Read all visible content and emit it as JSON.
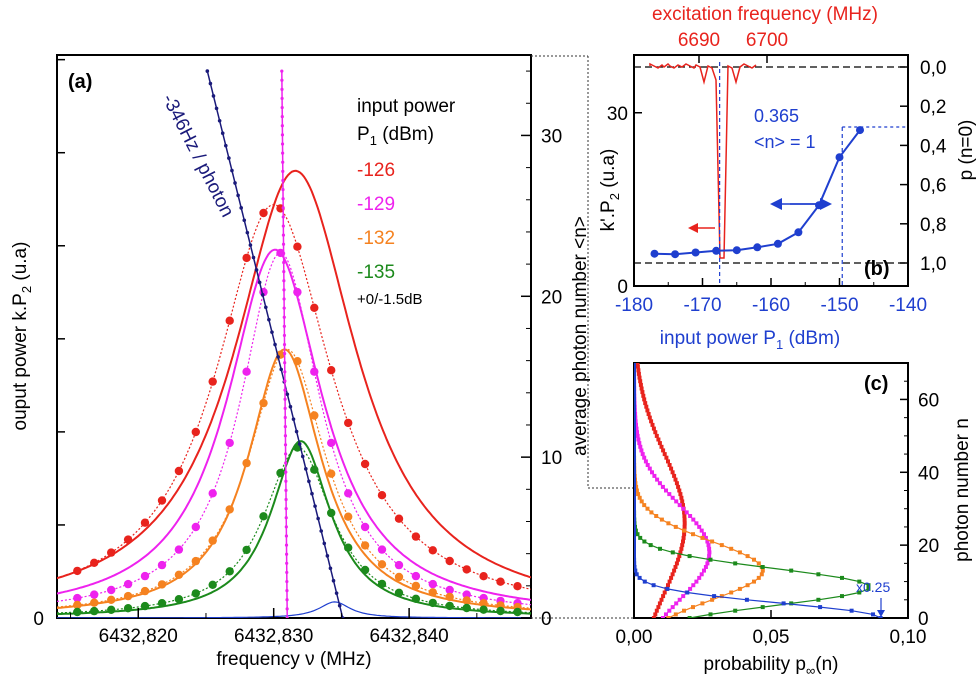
{
  "chart_data": [
    {
      "panel": "(a)",
      "type": "line",
      "xlabel": "frequency ν (MHz)",
      "ylabel": "ouput power k.P",
      "ylabel_sub": "2",
      "ylabel_unit": " (u.a)",
      "y2label": "average photon number <n>",
      "xlim": [
        6432.814,
        6432.849
      ],
      "ylim": [
        0,
        35
      ],
      "xticks": [
        "6432,820",
        "6432,830",
        "6432,840"
      ],
      "xtick_values": [
        6432.82,
        6432.83,
        6432.84
      ],
      "y2ticks": [
        "0",
        "10",
        "20",
        "30"
      ],
      "y2tick_values": [
        0,
        10,
        20,
        30
      ],
      "left_zero": "0",
      "legend_title_1": "input power",
      "legend_title_2": "P",
      "legend_title_sub": "1",
      "legend_title_unit": " (dBm)",
      "legend_note": "+0/-1.5dB",
      "annotation": "-346Hz / photon",
      "series": [
        {
          "name": "-126",
          "color": "#e8231d",
          "center": 6432.8316,
          "peak": 27.8,
          "width": 0.0055,
          "points_peak": 25.7,
          "points_width": 0.0052,
          "points_center": 6432.83
        },
        {
          "name": "-129",
          "color": "#ee22ee",
          "center": 6432.8301,
          "peak": 22.9,
          "width": 0.0043,
          "points_peak": 22.7,
          "points_width": 0.0036,
          "points_center": 6432.8305
        },
        {
          "name": "-132",
          "color": "#f58220",
          "center": 6432.8308,
          "peak": 16.7,
          "width": 0.0033,
          "points_peak": 16.7,
          "points_width": 0.0035,
          "points_center": 6432.831
        },
        {
          "name": "-135",
          "color": "#1c8a1c",
          "center": 6432.832,
          "peak": 11.0,
          "width": 0.0027,
          "points_peak": 10.6,
          "points_width": 0.0031,
          "points_center": 6432.8318
        }
      ],
      "linear_fit": {
        "color": "#1a1a7a",
        "x": [
          6432.8251,
          6432.8351
        ],
        "y": [
          34.0,
          0.0
        ]
      },
      "vertical_fit": {
        "color": "#ee22ee",
        "x": [
          6432.8306,
          6432.831
        ],
        "y": [
          34.0,
          0.0
        ]
      },
      "small_peak": {
        "color": "#1f3fcf",
        "center": 6432.8345,
        "peak": 1.0,
        "width": 0.0014
      }
    },
    {
      "panel": "(b)",
      "type": "line",
      "xlabel": "input power P",
      "xlabel_sub": "1",
      "xlabel_unit": " (dBm)",
      "ylabel": "k'.P",
      "ylabel_sub": "2",
      "ylabel_unit": " (u.a)",
      "y2label": "p (n=0)",
      "top_label": "excitation frequency (MHz)",
      "top_ticks": [
        "6690",
        "6700"
      ],
      "xlim": [
        -180,
        -140
      ],
      "xticks": [
        "-180",
        "-170",
        "-160",
        "-150",
        "-140"
      ],
      "xtick_values": [
        -180,
        -170,
        -160,
        -150,
        -140
      ],
      "ylim": [
        0,
        40
      ],
      "yticks": [
        "0",
        "30"
      ],
      "ytick_values": [
        0,
        30
      ],
      "y2ticks": [
        "0,0",
        "0,2",
        "0,4",
        "0,6",
        "0,8",
        "1,0"
      ],
      "y2tick_values": [
        0.0,
        0.2,
        0.4,
        0.6,
        0.8,
        1.0
      ],
      "label_value": "0.365",
      "label_n": "<n> = 1",
      "x": [
        -177,
        -174,
        -171,
        -168,
        -165,
        -162,
        -159,
        -156,
        -153,
        -150,
        -147
      ],
      "y": [
        5.6,
        5.5,
        5.8,
        6.1,
        6.2,
        6.7,
        7.3,
        9.3,
        14.0,
        22.3,
        27.0
      ],
      "blue_color": "#1f3fcf",
      "red_color": "#e8231d"
    },
    {
      "panel": "(c)",
      "type": "line",
      "xlabel": "probability p",
      "xlabel_sub": "∞",
      "xlabel_unit": "(n)",
      "ylabel": "photon number n",
      "xlim": [
        0,
        0.1
      ],
      "xticks": [
        "0,00",
        "0,05",
        "0,10"
      ],
      "xtick_values": [
        0,
        0.05,
        0.1
      ],
      "ylim": [
        0,
        70
      ],
      "yticks": [
        "0",
        "20",
        "40",
        "60"
      ],
      "ytick_values": [
        0,
        20,
        40,
        60
      ],
      "scale_note": "x0.25",
      "series": [
        {
          "color": "#e8231d",
          "mean": 26,
          "sd": 19,
          "peak": 0.0185
        },
        {
          "color": "#ee22ee",
          "mean": 18,
          "sd": 13,
          "peak": 0.0275
        },
        {
          "color": "#f58220",
          "mean": 13,
          "sd": 8,
          "peak": 0.047
        },
        {
          "color": "#1c8a1c",
          "mean": 8.5,
          "sd": 5,
          "peak": 0.086
        },
        {
          "color": "#1f3fcf",
          "mean": 0,
          "sd": 4,
          "peak": 0.09
        }
      ]
    }
  ]
}
